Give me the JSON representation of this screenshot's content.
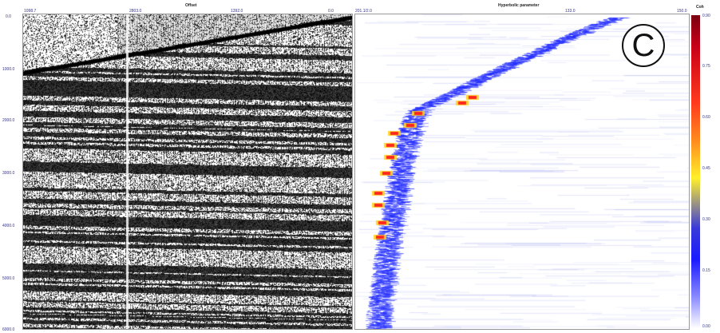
{
  "gather_panel": {
    "title": "Offset",
    "top_ticks": [
      "1098.7",
      "2803.0",
      "1392.0",
      "0.0"
    ],
    "left_ticks": [
      "0.0",
      "1000.0",
      "2000.0",
      "3000.0",
      "4000.0",
      "5000.0",
      "6000.0"
    ]
  },
  "semblance_panel": {
    "title": "Hyperbolic parameter",
    "top_ticks": [
      "201.1/2.0",
      "133.0",
      "150.0"
    ]
  },
  "colorbar": {
    "title": "Coh",
    "ticks": [
      "0.90",
      "0.75",
      "0.60",
      "0.45",
      "0.30",
      "0.15",
      "0.00"
    ]
  },
  "panel_label": "C",
  "colors": {
    "seismic_ink": "#000000",
    "hot": "#ff1e1e",
    "warm": "#ffd21e",
    "cool": "#1a28ff"
  }
}
